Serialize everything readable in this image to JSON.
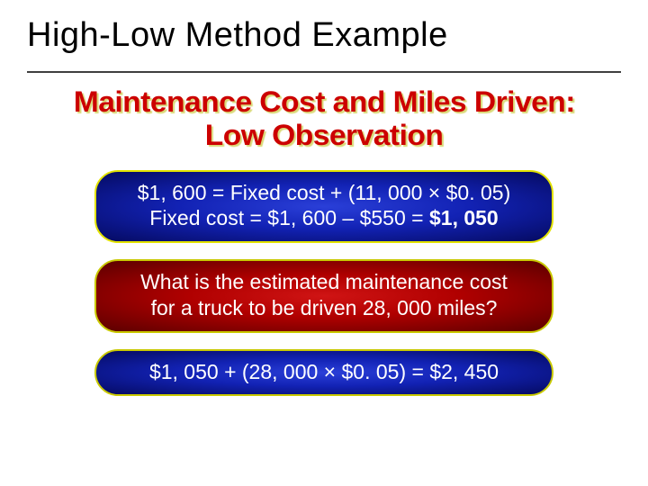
{
  "slide": {
    "title": "High-Low Method Example",
    "subtitle_line1": "Maintenance Cost and Miles Driven:",
    "subtitle_line2": "Low Observation"
  },
  "boxes": {
    "box1": {
      "line1": "$1, 600 = Fixed cost + (11, 000 × $0. 05)",
      "line2_prefix": "Fixed cost = $1, 600 – $550 = ",
      "line2_bold": "$1, 050",
      "bg_type": "blue",
      "border_color": "#e2e200"
    },
    "box2": {
      "line1": "What is the estimated maintenance cost",
      "line2": "for a truck to be driven 28, 000 miles?",
      "bg_type": "red",
      "border_color": "#c9c900"
    },
    "box3": {
      "line1": "$1, 050 + (28, 000 × $0. 05) = $2, 450",
      "bg_type": "blue",
      "border_color": "#c9c900"
    }
  },
  "styling": {
    "title_fontsize": 38,
    "title_color": "#000000",
    "subtitle_fontsize": 32,
    "subtitle_color": "#cc0000",
    "subtitle_shadow": "#d9d977",
    "pill_width": 510,
    "pill_radius": 26,
    "pill_fontsize": 23,
    "pill_text_color": "#ffffff",
    "blue_gradient": [
      "#2a3fd8",
      "#1222b4",
      "#050a60"
    ],
    "red_gradient": [
      "#d01414",
      "#b00000",
      "#5a0000"
    ],
    "background_color": "#ffffff",
    "divider_color": "#404040"
  }
}
